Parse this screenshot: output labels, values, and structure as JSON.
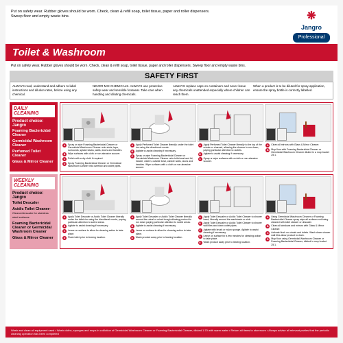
{
  "colors": {
    "brand_red": "#c8112e",
    "brand_blue": "#003a70",
    "label_pink": "#e8a0b0",
    "grey": "#d0d0d0"
  },
  "top_instruction": "Put on safety wear. Rubber gloves should be worn. Check, clean & refill soap, toilet tissue, paper and roller dispensers. Sweep floor and empty waste bins.",
  "brand": {
    "name": "Jangro",
    "badge": "Professional",
    "icon": "❋"
  },
  "title": "Toilet & Washroom",
  "sub_instruction": "Put on safety wear. Rubber gloves should be worn. Check, clean & refill soap, toilet tissue, paper and roller dispensers. Sweep floor and empty waste bins.",
  "safety": {
    "heading": "SAFETY FIRST",
    "cols": [
      "ALWAYS read, understand and adhere to label instructions and dilution rates, before using any chemical.",
      "NEVER MIX CHEMICALS. ALWAYS use protective safety wear and sensible footwear. Take care when handling and diluting chemicals.",
      "ALWAYS replace caps on containers and never leave any chemicals unattended especially where children can reach them.",
      "When a product is to be diluted for spray application, ensure the spray bottle is correctly labelled."
    ]
  },
  "daily": {
    "heading": "DAILY CLEANING",
    "pc": "Product choice: Jangro",
    "products": [
      "Foaming Bactericidal Cleaner",
      "Germicidal Washroom Cleaner",
      "Perfumed Toilet Cleaner",
      "Glass & Mirror Cleaner"
    ],
    "steps": [
      {
        "lines": [
          "Spray or wipe Foaming Bactericidal Cleaner or Germicidal Washroom Cleaner onto sinks, taps, surrounds, splash backs, walls, doors and handles.",
          "Wipe surfaces with cloth or non abrasive scourer.",
          "Polish with a dry cloth if required.",
          "Spray Foaming Bactericidal Cleaner or Germicidal Washroom Cleaner into overflow and outlet pipes."
        ],
        "marks": [
          "A",
          "B",
          "C",
          "D"
        ]
      },
      {
        "lines": [
          "Apply Perfumed Toilet Cleaner liberally under the toilet rim using the directional nozzle.",
          "Agitate to assist cleaning if necessary.",
          "Spray or wipe Foaming Bactericidal Cleaner or Germicidal Washroom Cleaner onto toilet seat and lid, handle, cistern, outside bowl, cubicle walls, doors and handles. Wipe surfaces with a cloth or non abrasive scourer."
        ],
        "marks": [
          "A",
          "B",
          "C"
        ]
      },
      {
        "lines": [
          "Apply Perfumed Toilet Cleaner liberally to the top of the urinals or channel, allowing the cleaner to run down, paying particular attention to outlets.",
          "Agitate to assist cleaning if necessary.",
          "Spray or wipe surfaces with a cloth or non-abrasive scourer."
        ],
        "marks": [
          "A",
          "B",
          "C"
        ]
      },
      {
        "lines": [
          "Clean all mirrors with Glass & Mirror Cleaner.",
          "Mop floor with Foaming Bactericidal Cleaner or Germicidal Washroom Cleaner diluted in a mop bucket 25:1."
        ],
        "marks": [
          "A",
          "B"
        ]
      }
    ]
  },
  "weekly": {
    "heading": "WEEKLY CLEANING",
    "pc": "Product choice: Jangro",
    "products": [
      {
        "n": "Toilet Descaler",
        "s": ""
      },
      {
        "n": "Acidic Toilet Cleaner-",
        "s": "Cleaner/descaler for stainless steel surfaces"
      },
      {
        "n": "Foaming Bactericidal Cleaner or Germicidal Washroom Cleaner",
        "s": ""
      },
      {
        "n": "Glass & Mirror Cleaner",
        "s": ""
      }
    ],
    "steps": [
      {
        "lines": [
          "Apply Toilet Descaler or Acidic Toilet Cleaner liberally under the toilet rim using the directional nozzle, paying particular attention to soiled areas.",
          "Agitate to assist cleaning if necessary.",
          "Leave on surface to allow for cleaning action to take place.",
          "Flush toilet prior to leaving location."
        ],
        "marks": [
          "A",
          "B",
          "C",
          "D"
        ]
      },
      {
        "lines": [
          "Apply Toilet Descaler or Acidic Toilet Cleaner liberally around the urinal or urinal trough allowing product to run down paying particular attention to soiled areas.",
          "Agitate to assist cleaning if necessary.",
          "Leave on surface to allow for cleaning action to take place.",
          "Wash product away prior to leaving location."
        ],
        "marks": [
          "A",
          "B",
          "C",
          "D"
        ]
      },
      {
        "lines": [
          "Apply Toilet Descaler or Acidic Toilet Cleaner to shower head, liberally around the washbasin or sink.",
          "Apply Toilet Descaler or Acidic Toilet Cleaner to shower wall tiles and down outlet pipes.",
          "Agitate with brush or nylon sponge. Agitate to assist cleaning if necessary.",
          "Leave on surface for a few minutes for cleaning action to take place.",
          "Wash product away prior to leaving location."
        ],
        "marks": [
          "A",
          "B",
          "C",
          "D",
          "E"
        ]
      },
      {
        "lines": [
          "Using Germicidal Washroom Cleaner or Foaming Bactericidal Cleaner spray wipe all surfaces not being cleaned with toilet cleaner or descaler.",
          "Clean all windows and mirrors with Glass & Mirror Cleaner.",
          "Activate flush on urinals and toilets. Wash down shower wall tiles allow product to drain.",
          "Mop floor using Germicidal Washroom Cleaner or Foaming Bactericidal Cleaner, diluted in mop bucket 25:1."
        ],
        "marks": [
          "A",
          "B",
          "C",
          "D"
        ]
      }
    ]
  },
  "footer": "Wash and clean all equipment used • Wash cloths, sponges and mops in a dilution of Germicidal Washroom Cleaner or Foaming Bactericidal Cleaner, diluted 1:70 with warm water • Return all items to storeroom • Always advise all relevant parties that the periodic cleaning operation has been completed"
}
